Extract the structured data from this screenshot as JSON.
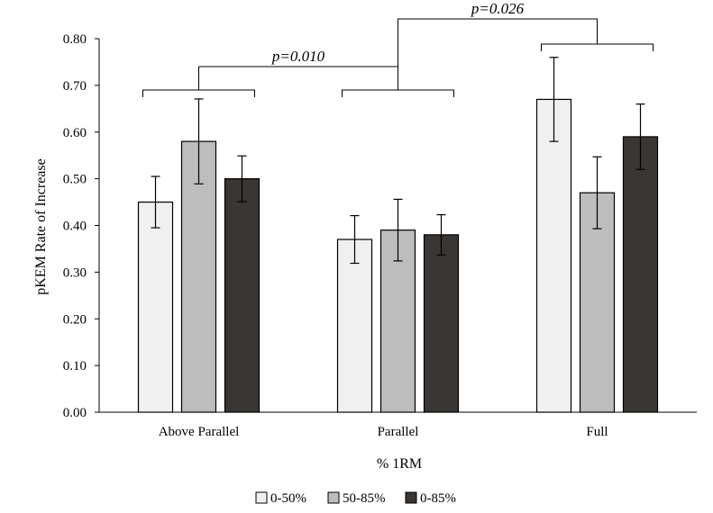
{
  "chart_data": {
    "type": "bar",
    "title": "",
    "xlabel": "% 1RM",
    "ylabel": "pKEM Rate of Increase",
    "categories": [
      "Above Parallel",
      "Parallel",
      "Full"
    ],
    "ylim": [
      0,
      0.8
    ],
    "yticks": [
      "0.00",
      "0.10",
      "0.20",
      "0.30",
      "0.40",
      "0.50",
      "0.60",
      "0.70",
      "0.80"
    ],
    "grid": false,
    "legend_position": "bottom",
    "series": [
      {
        "name": "0-50%",
        "color": "#f0f0f0",
        "values": [
          0.45,
          0.37,
          0.67
        ],
        "error": [
          0.055,
          0.051,
          0.09
        ]
      },
      {
        "name": "50-85%",
        "color": "#bdbdbd",
        "values": [
          0.58,
          0.39,
          0.47
        ],
        "error": [
          0.091,
          0.066,
          0.077
        ]
      },
      {
        "name": "0-85%",
        "color": "#3a3633",
        "values": [
          0.5,
          0.38,
          0.59
        ],
        "error": [
          0.049,
          0.043,
          0.07
        ]
      }
    ],
    "annotations": [
      {
        "text": "p=0.010",
        "between": [
          "Above Parallel",
          "Parallel"
        ]
      },
      {
        "text": "p=0.026",
        "between": [
          "Parallel",
          "Full"
        ]
      }
    ]
  }
}
